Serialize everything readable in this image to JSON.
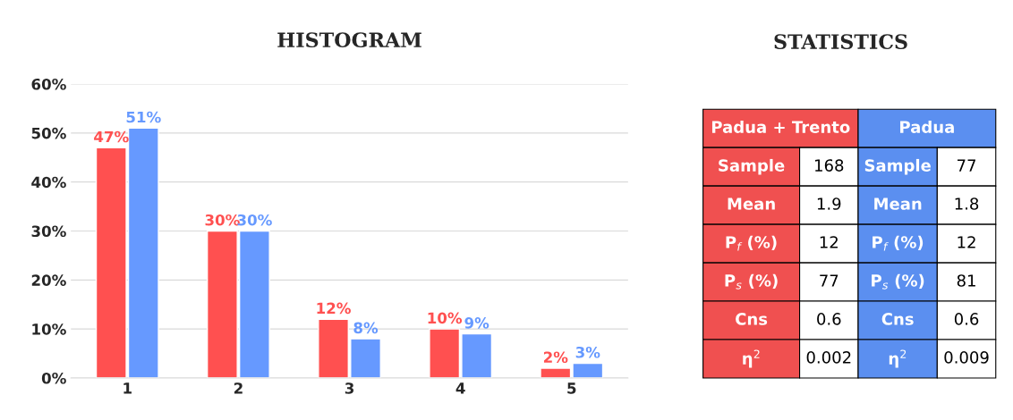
{
  "chart_data": [
    {
      "type": "bar",
      "title": "HISTOGRAM",
      "categories": [
        "1",
        "2",
        "3",
        "4",
        "5"
      ],
      "series": [
        {
          "color": "#ff5050",
          "values": [
            47,
            30,
            12,
            10,
            2
          ]
        },
        {
          "color": "#6699ff",
          "values": [
            51,
            30,
            8,
            9,
            3
          ]
        }
      ],
      "value_labels": [
        [
          "47%",
          "30%",
          "12%",
          "10%",
          "2%"
        ],
        [
          "51%",
          "30%",
          "8%",
          "9%",
          "3%"
        ]
      ],
      "ylim": [
        0,
        60
      ],
      "yticks": [
        {
          "value": 0,
          "label": "0%"
        },
        {
          "value": 10,
          "label": "10%"
        },
        {
          "value": 20,
          "label": "20%"
        },
        {
          "value": 30,
          "label": "30%"
        },
        {
          "value": 40,
          "label": "40%"
        },
        {
          "value": 50,
          "label": "50%"
        },
        {
          "value": 60,
          "label": "60%"
        }
      ],
      "grid": "y",
      "legend": false
    },
    {
      "type": "other",
      "title": "STATISTICS",
      "colors": [
        "#f05050",
        "#5b8ff0"
      ],
      "annotations": [
        "Padua + Trento",
        "Padua",
        "Sample",
        "168",
        "Sample",
        "77",
        "Mean",
        "1.9",
        "Mean",
        "1.8",
        "P$_{f}$ (%)",
        "12",
        "P$_{f}$ (%)",
        "12",
        "P$_{s}$ (%)",
        "77",
        "P$_{s}$ (%)",
        "81",
        "Cns",
        "0.6",
        "Cns",
        "0.6",
        "η$^{2}$",
        "0.002",
        "η$^{2}$",
        "0.009"
      ]
    }
  ]
}
